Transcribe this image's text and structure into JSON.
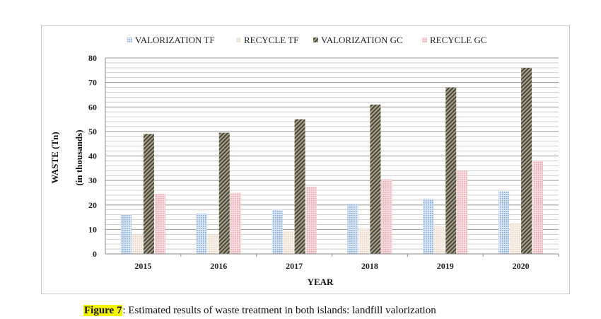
{
  "chart_data": {
    "type": "bar",
    "categories": [
      "2015",
      "2016",
      "2017",
      "2018",
      "2019",
      "2020"
    ],
    "series": [
      {
        "name": "VALORIZATION TF",
        "values": [
          16,
          16.5,
          18,
          20.5,
          22.5,
          25.5
        ],
        "color": "#aac6ea",
        "pattern": "dots-blue"
      },
      {
        "name": "RECYCLE TF",
        "values": [
          8,
          8,
          9.5,
          10.5,
          11.5,
          12.5
        ],
        "color": "#f3e4d8",
        "pattern": "dots-cream"
      },
      {
        "name": "VALORIZATION GC",
        "values": [
          49,
          49.5,
          55,
          61,
          68,
          76
        ],
        "color": "#6f6a55",
        "pattern": "diag-olive"
      },
      {
        "name": "RECYCLE GC",
        "values": [
          24.5,
          25,
          27.5,
          30.5,
          34,
          38
        ],
        "color": "#f2c2c6",
        "pattern": "dots-pink"
      }
    ],
    "ylabel": [
      "WASTE (Tn)",
      "(in thousands)"
    ],
    "xlabel": "YEAR",
    "ylim": [
      0,
      80
    ],
    "yticks": [
      0,
      10,
      20,
      30,
      40,
      50,
      60,
      70,
      80
    ],
    "grid": true,
    "legend_position": "top"
  },
  "caption": {
    "label": "Figure 7",
    "text": "Estimated results of waste treatment in both islands: landfill valorization"
  }
}
